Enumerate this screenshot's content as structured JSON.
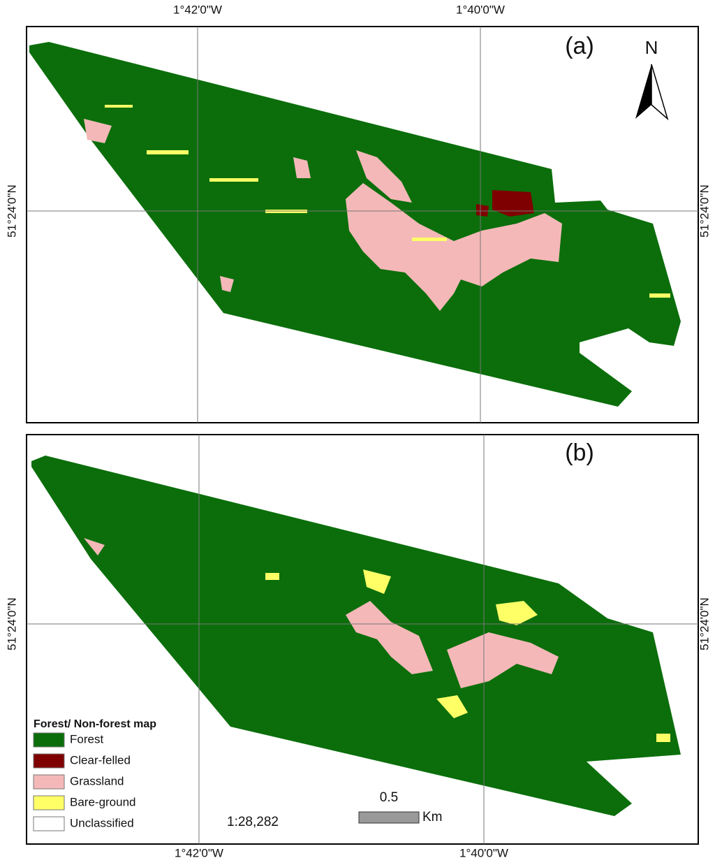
{
  "panels": [
    {
      "label": "(a)",
      "top_labels": [
        "1°42'0\"W",
        "1°40'0\"W"
      ],
      "left_label": "51°24'0\"N",
      "right_label": "51°24'0\"N"
    },
    {
      "label": "(b)",
      "bottom_labels": [
        "1°42'0\"W",
        "1°40'0\"W"
      ],
      "left_label": "51°24'0\"N",
      "right_label": "51°24'0\"N"
    }
  ],
  "north": "N",
  "legend": {
    "title": "Forest/ Non-forest map",
    "items": [
      {
        "label": "Forest",
        "color": "#0b6e0b"
      },
      {
        "label": "Clear-felled",
        "color": "#7f0000"
      },
      {
        "label": "Grassland",
        "color": "#f5b8b8"
      },
      {
        "label": "Bare-ground",
        "color": "#ffff66"
      },
      {
        "label": "Unclassified",
        "color": "#ffffff"
      }
    ]
  },
  "scale": {
    "ratio": "1:28,282",
    "distance": "0.5",
    "unit": "Km"
  }
}
